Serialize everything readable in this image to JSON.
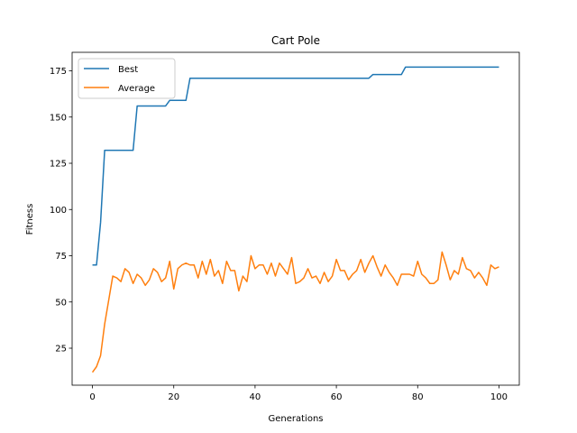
{
  "chart_data": {
    "type": "line",
    "title": "Cart Pole",
    "xlabel": "Generations",
    "ylabel": "Fitness",
    "xlim": [
      -5,
      105
    ],
    "ylim": [
      5,
      185
    ],
    "xticks": [
      0,
      20,
      40,
      60,
      80,
      100
    ],
    "yticks": [
      25,
      50,
      75,
      100,
      125,
      150,
      175
    ],
    "grid": false,
    "legend_position": "top-left",
    "x": [
      0,
      1,
      2,
      3,
      4,
      5,
      6,
      7,
      8,
      9,
      10,
      11,
      12,
      13,
      14,
      15,
      16,
      17,
      18,
      19,
      20,
      21,
      22,
      23,
      24,
      25,
      26,
      27,
      28,
      29,
      30,
      31,
      32,
      33,
      34,
      35,
      36,
      37,
      38,
      39,
      40,
      41,
      42,
      43,
      44,
      45,
      46,
      47,
      48,
      49,
      50,
      51,
      52,
      53,
      54,
      55,
      56,
      57,
      58,
      59,
      60,
      61,
      62,
      63,
      64,
      65,
      66,
      67,
      68,
      69,
      70,
      71,
      72,
      73,
      74,
      75,
      76,
      77,
      78,
      79,
      80,
      81,
      82,
      83,
      84,
      85,
      86,
      87,
      88,
      89,
      90,
      91,
      92,
      93,
      94,
      95,
      96,
      97,
      98,
      99,
      100
    ],
    "series": [
      {
        "name": "Best",
        "color": "#1f77b4",
        "values": [
          70,
          70,
          93,
          132,
          132,
          132,
          132,
          132,
          132,
          132,
          132,
          156,
          156,
          156,
          156,
          156,
          156,
          156,
          156,
          159,
          159,
          159,
          159,
          159,
          171,
          171,
          171,
          171,
          171,
          171,
          171,
          171,
          171,
          171,
          171,
          171,
          171,
          171,
          171,
          171,
          171,
          171,
          171,
          171,
          171,
          171,
          171,
          171,
          171,
          171,
          171,
          171,
          171,
          171,
          171,
          171,
          171,
          171,
          171,
          171,
          171,
          171,
          171,
          171,
          171,
          171,
          171,
          171,
          171,
          173,
          173,
          173,
          173,
          173,
          173,
          173,
          173,
          177,
          177,
          177,
          177,
          177,
          177,
          177,
          177,
          177,
          177,
          177,
          177,
          177,
          177,
          177,
          177,
          177,
          177,
          177,
          177,
          177,
          177,
          177,
          177
        ]
      },
      {
        "name": "Average",
        "color": "#ff7f0e",
        "values": [
          12,
          15,
          21,
          38,
          51,
          64,
          63,
          61,
          68,
          66,
          60,
          65,
          63,
          59,
          62,
          68,
          66,
          61,
          63,
          72,
          57,
          68,
          70,
          71,
          70,
          70,
          63,
          72,
          65,
          73,
          64,
          67,
          60,
          72,
          67,
          67,
          56,
          64,
          61,
          75,
          68,
          70,
          70,
          65,
          71,
          64,
          71,
          68,
          65,
          74,
          60,
          61,
          63,
          68,
          63,
          64,
          60,
          66,
          61,
          64,
          73,
          67,
          67,
          62,
          65,
          67,
          73,
          66,
          71,
          75,
          69,
          64,
          70,
          66,
          63,
          59,
          65,
          65,
          65,
          64,
          72,
          65,
          63,
          60,
          60,
          62,
          77,
          70,
          62,
          67,
          65,
          74,
          68,
          67,
          63,
          66,
          63,
          59,
          70,
          68,
          69
        ]
      }
    ]
  }
}
